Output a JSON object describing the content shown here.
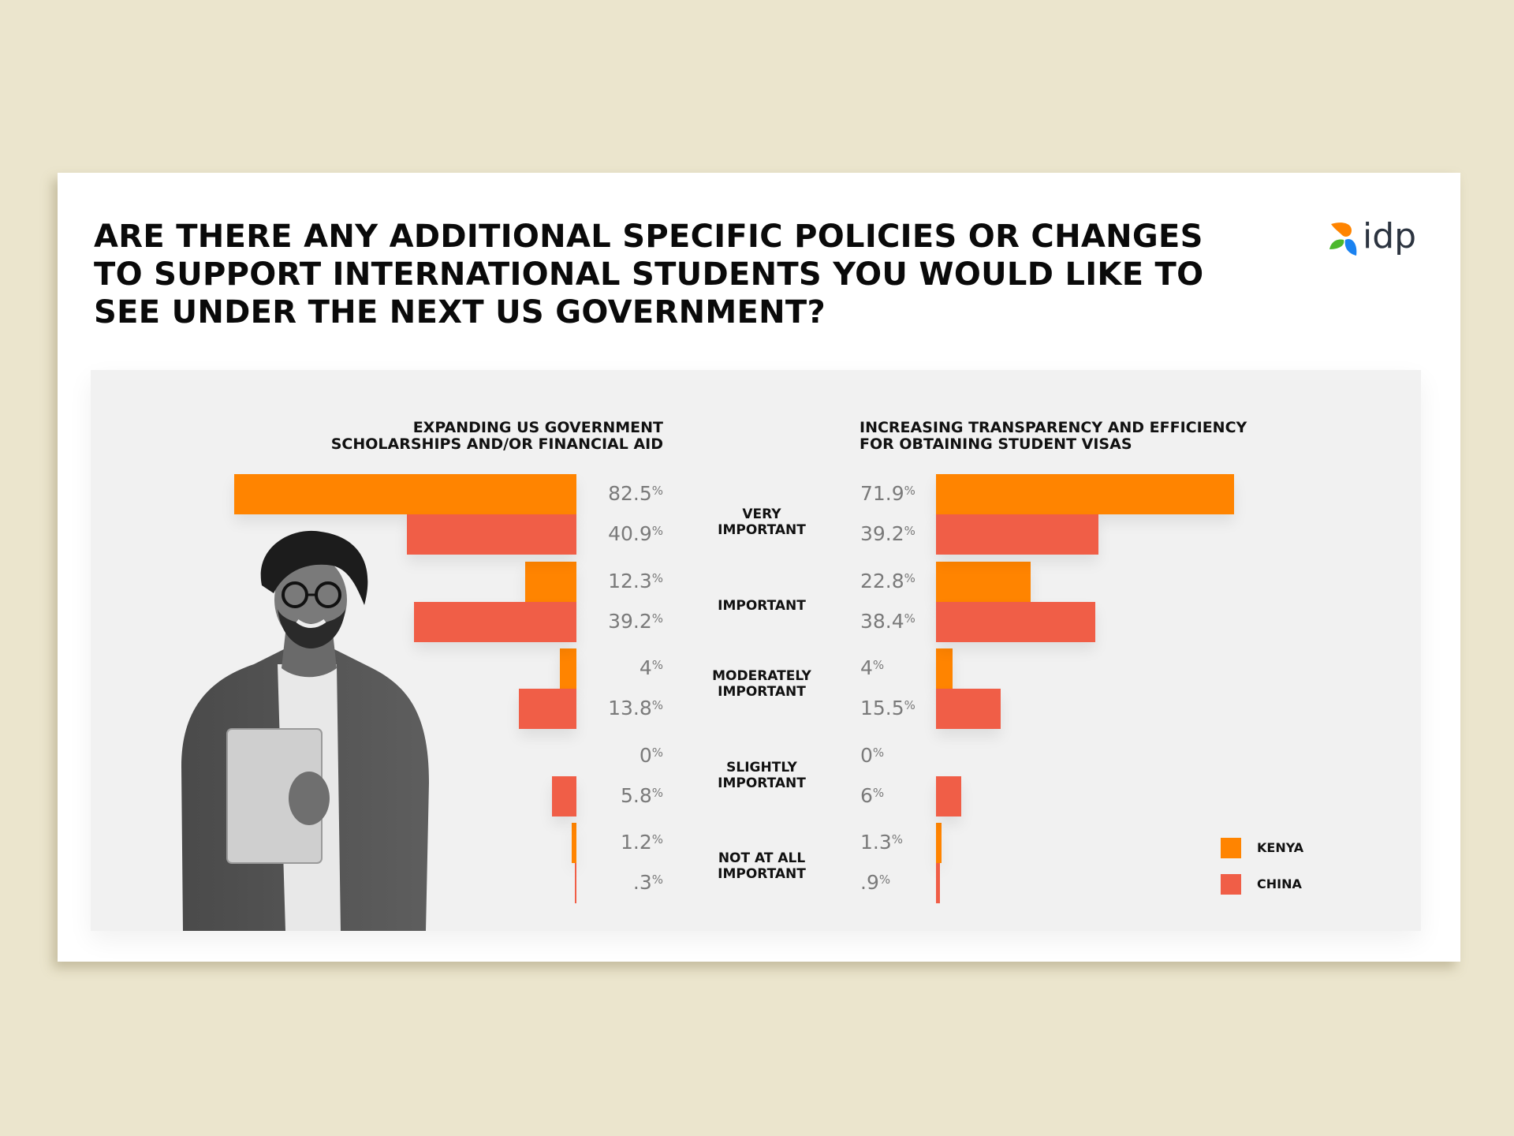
{
  "title": "ARE THERE ANY ADDITIONAL SPECIFIC POLICIES OR CHANGES TO SUPPORT INTERNATIONAL STUDENTS YOU WOULD LIKE TO SEE UNDER THE NEXT US GOVERNMENT?",
  "title_lines": [
    "ARE THERE ANY ADDITIONAL SPECIFIC POLICIES OR CHANGES",
    "TO SUPPORT INTERNATIONAL STUDENTS YOU WOULD LIKE TO",
    "SEE UNDER THE NEXT US GOVERNMENT?"
  ],
  "logo": {
    "text": "idp",
    "icon": "idp-petal-logo-icon"
  },
  "colors": {
    "kenya": "#ff8400",
    "china": "#f05e47",
    "background": "#ebe5cd",
    "panel": "#f1f1f1"
  },
  "legend": [
    {
      "label": "KENYA",
      "color": "#ff8400"
    },
    {
      "label": "CHINA",
      "color": "#f05e47"
    }
  ],
  "chart_data": [
    {
      "type": "bar",
      "orientation": "horizontal",
      "direction": "leftward",
      "title_lines": [
        "EXPANDING US GOVERNMENT",
        "SCHOLARSHIPS AND/OR FINANCIAL AID"
      ],
      "categories": [
        "VERY IMPORTANT",
        "IMPORTANT",
        "MODERATELY IMPORTANT",
        "SLIGHTLY IMPORTANT",
        "NOT AT ALL IMPORTANT"
      ],
      "series": [
        {
          "name": "KENYA",
          "values": [
            82.5,
            12.3,
            4,
            0,
            1.2
          ],
          "labels": [
            "82.5",
            "12.3",
            "4",
            "0",
            "1.2"
          ]
        },
        {
          "name": "CHINA",
          "values": [
            40.9,
            39.2,
            13.8,
            5.8,
            0.3
          ],
          "labels": [
            "40.9",
            "39.2",
            "13.8",
            "5.8",
            ".3"
          ]
        }
      ],
      "unit": "%",
      "xlim": [
        0,
        100
      ]
    },
    {
      "type": "bar",
      "orientation": "horizontal",
      "direction": "rightward",
      "title_lines": [
        "INCREASING TRANSPARENCY AND EFFICIENCY",
        "FOR OBTAINING STUDENT VISAS"
      ],
      "categories": [
        "VERY IMPORTANT",
        "IMPORTANT",
        "MODERATELY IMPORTANT",
        "SLIGHTLY IMPORTANT",
        "NOT AT ALL IMPORTANT"
      ],
      "series": [
        {
          "name": "KENYA",
          "values": [
            71.9,
            22.8,
            4,
            0,
            1.3
          ],
          "labels": [
            "71.9",
            "22.8",
            "4",
            "0",
            "1.3"
          ]
        },
        {
          "name": "CHINA",
          "values": [
            39.2,
            38.4,
            15.5,
            6,
            0.9
          ],
          "labels": [
            "39.2",
            "38.4",
            "15.5",
            "6",
            ".9"
          ]
        }
      ],
      "unit": "%",
      "xlim": [
        0,
        100
      ]
    }
  ],
  "category_labels": [
    [
      "VERY",
      "IMPORTANT"
    ],
    [
      "IMPORTANT"
    ],
    [
      "MODERATELY",
      "IMPORTANT"
    ],
    [
      "SLIGHTLY",
      "IMPORTANT"
    ],
    [
      "NOT AT ALL",
      "IMPORTANT"
    ]
  ],
  "photo": {
    "description": "student-holding-laptop-photo"
  }
}
